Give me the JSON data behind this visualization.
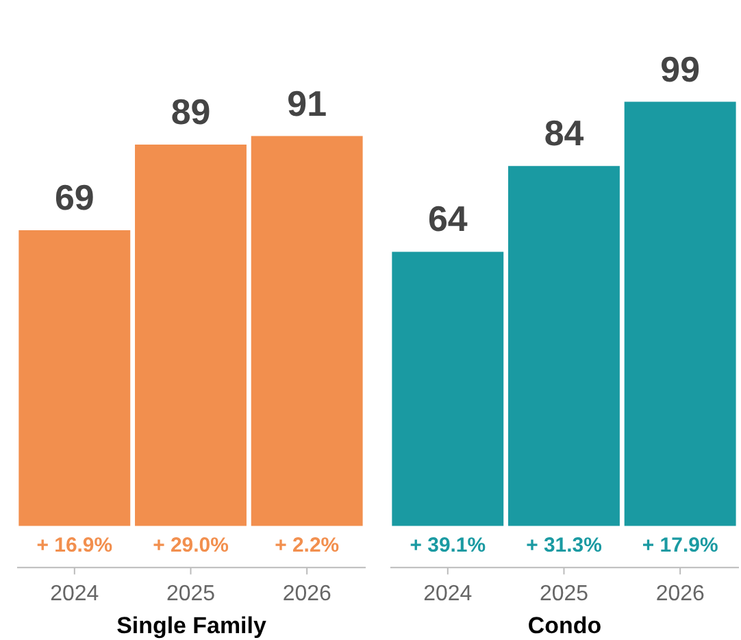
{
  "chart_data": [
    {
      "type": "bar",
      "xlabel": "Single Family",
      "categories": [
        "2024",
        "2025",
        "2026"
      ],
      "values": [
        69,
        89,
        91
      ],
      "color": "#f28f4e",
      "data_labels": true,
      "annotations": [
        {
          "text": "+ 16.9%",
          "x": "2024",
          "y": 0
        },
        {
          "text": "+ 29.0%",
          "x": "2025",
          "y": 0
        },
        {
          "text": "+ 2.2%",
          "x": "2026",
          "y": 0
        }
      ]
    },
    {
      "type": "bar",
      "xlabel": "Condo",
      "categories": [
        "2024",
        "2025",
        "2026"
      ],
      "values": [
        64,
        84,
        99
      ],
      "color": "#1a9aa2",
      "data_labels": true,
      "annotations": [
        {
          "text": "+ 39.1%",
          "x": "2024",
          "y": 0
        },
        {
          "text": "+ 31.3%",
          "x": "2025",
          "y": 0
        },
        {
          "text": "+ 17.9%",
          "x": "2026",
          "y": 0
        }
      ]
    }
  ]
}
